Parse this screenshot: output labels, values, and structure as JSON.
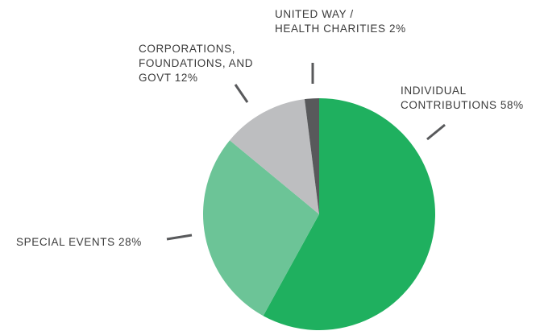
{
  "chart_data": {
    "type": "pie",
    "title": "",
    "slices": [
      {
        "name": "INDIVIDUAL CONTRIBUTIONS",
        "value": 58,
        "value_label": "58%",
        "color": "#1fb05f",
        "label_lines": [
          "INDIVIDUAL",
          "CONTRIBUTIONS  58%"
        ]
      },
      {
        "name": "SPECIAL EVENTS",
        "value": 28,
        "value_label": "28%",
        "color": "#6cc497",
        "label_lines": [
          "SPECIAL EVENTS  28%"
        ]
      },
      {
        "name": "CORPORATIONS, FOUNDATIONS, AND GOVT",
        "value": 12,
        "value_label": "12%",
        "color": "#bdbec0",
        "label_lines": [
          "CORPORATIONS,",
          "FOUNDATIONS, AND",
          "GOVT  12%"
        ]
      },
      {
        "name": "UNITED WAY / HEALTH CHARITIES",
        "value": 2,
        "value_label": "2%",
        "color": "#58595b",
        "label_lines": [
          "UNITED WAY /",
          "HEALTH CHARITIES  2%"
        ]
      }
    ],
    "start_angle": "12 o'clock",
    "direction": "clockwise",
    "leader_line_color": "#58595b"
  }
}
